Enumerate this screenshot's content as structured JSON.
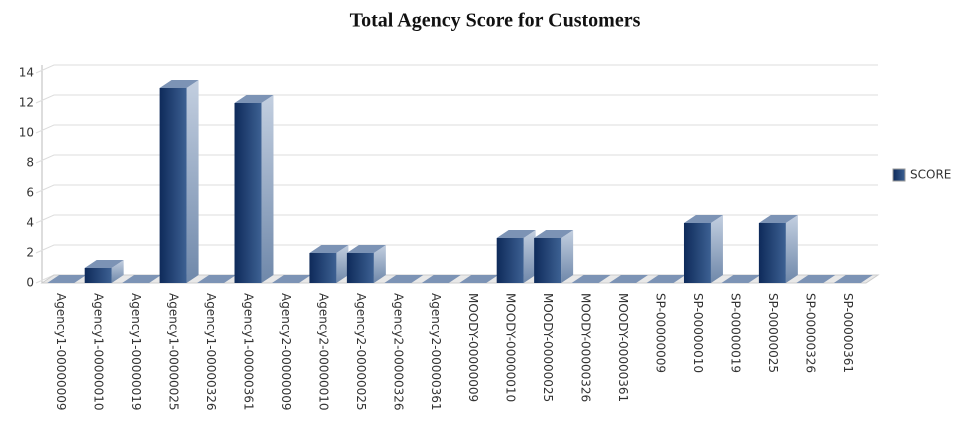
{
  "chart_data": {
    "type": "bar3d",
    "title": "Total Agency Score for Customers",
    "categories": [
      "Agency1-00000009",
      "Agency1-00000010",
      "Agency1-00000019",
      "Agency1-00000025",
      "Agency1-00000326",
      "Agency1-00000361",
      "Agency2-00000009",
      "Agency2-00000010",
      "Agency2-00000025",
      "Agency2-00000326",
      "Agency2-00000361",
      "MOODY-00000009",
      "MOODY-00000010",
      "MOODY-00000025",
      "MOODY-00000326",
      "MOODY-00000361",
      "SP-00000009",
      "SP-00000010",
      "SP-00000019",
      "SP-00000025",
      "SP-00000326",
      "SP-00000361"
    ],
    "series": [
      {
        "name": "SCORE",
        "color": "#1f3d6e",
        "values": [
          0,
          1,
          0,
          13,
          0,
          12,
          0,
          2,
          2,
          0,
          0,
          0,
          3,
          3,
          0,
          0,
          0,
          4,
          0,
          4,
          0,
          0
        ]
      }
    ],
    "ylim": [
      0,
      14
    ],
    "yticks": [
      0,
      2,
      4,
      6,
      8,
      10,
      12,
      14
    ],
    "grid": true,
    "legend": "right"
  }
}
